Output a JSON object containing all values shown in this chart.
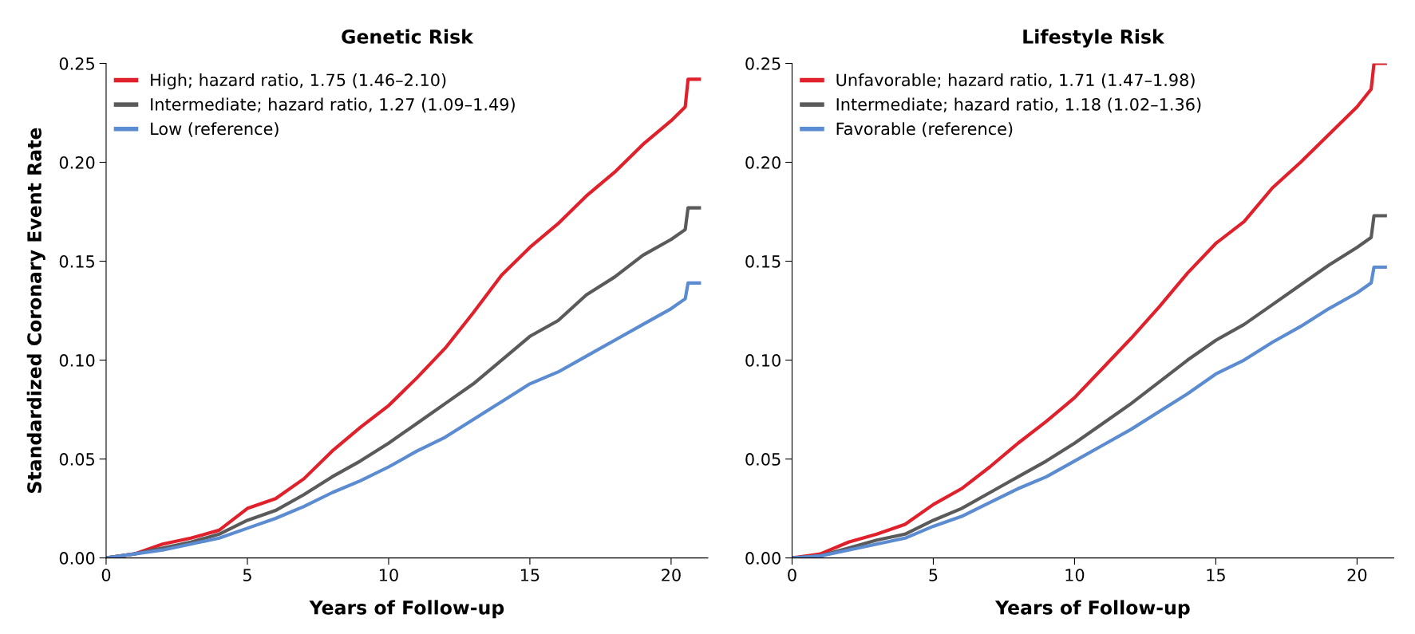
{
  "chart_data": [
    {
      "type": "line",
      "title": "Genetic Risk",
      "xlabel": "Years of Follow-up",
      "ylabel": "Standardized Coronary Event Rate",
      "xlim": [
        0,
        21.3
      ],
      "xticks": [
        0,
        5,
        10,
        15,
        20
      ],
      "ylim": [
        0,
        0.25
      ],
      "yticks": [
        {
          "value": 0,
          "label": "0.00"
        },
        {
          "value": 0.05,
          "label": "0.05"
        },
        {
          "value": 0.1,
          "label": "0.10"
        },
        {
          "value": 0.15,
          "label": "0.15"
        },
        {
          "value": 0.2,
          "label": "0.20"
        },
        {
          "value": 0.25,
          "label": "0.25"
        }
      ],
      "legend": "top left",
      "grid": false,
      "x": [
        0,
        1,
        2,
        3,
        4,
        5,
        6,
        7,
        8,
        9,
        10,
        11,
        12,
        13,
        14,
        15,
        16,
        17,
        18,
        19,
        20,
        20.5,
        20.6,
        21
      ],
      "series": [
        {
          "name": "High; hazard ratio, 1.75 (1.46–2.10)",
          "color": "#e0202a",
          "values": [
            0,
            0.002,
            0.007,
            0.01,
            0.014,
            0.025,
            0.03,
            0.04,
            0.054,
            0.066,
            0.077,
            0.091,
            0.106,
            0.124,
            0.143,
            0.157,
            0.169,
            0.183,
            0.195,
            0.209,
            0.221,
            0.228,
            0.242,
            0.242
          ]
        },
        {
          "name": "Intermediate; hazard ratio, 1.27 (1.09–1.49)",
          "color": "#5a5a5a",
          "values": [
            0,
            0.002,
            0.005,
            0.008,
            0.012,
            0.019,
            0.024,
            0.032,
            0.041,
            0.049,
            0.058,
            0.068,
            0.078,
            0.088,
            0.1,
            0.112,
            0.12,
            0.133,
            0.142,
            0.153,
            0.161,
            0.166,
            0.177,
            0.177
          ]
        },
        {
          "name": "Low (reference)",
          "color": "#5b8bd0",
          "values": [
            0,
            0.002,
            0.004,
            0.007,
            0.01,
            0.015,
            0.02,
            0.026,
            0.033,
            0.039,
            0.046,
            0.054,
            0.061,
            0.07,
            0.079,
            0.088,
            0.094,
            0.102,
            0.11,
            0.118,
            0.126,
            0.131,
            0.139,
            0.139
          ]
        }
      ]
    },
    {
      "type": "line",
      "title": "Lifestyle Risk",
      "xlabel": "Years of Follow-up",
      "xlim": [
        0,
        21.3
      ],
      "xticks": [
        0,
        5,
        10,
        15,
        20
      ],
      "ylim": [
        0,
        0.25
      ],
      "yticks": [
        {
          "value": 0,
          "label": "0.00"
        },
        {
          "value": 0.05,
          "label": "0.05"
        },
        {
          "value": 0.1,
          "label": "0.10"
        },
        {
          "value": 0.15,
          "label": "0.15"
        },
        {
          "value": 0.2,
          "label": "0.20"
        },
        {
          "value": 0.25,
          "label": "0.25"
        }
      ],
      "legend": "top left",
      "grid": false,
      "x": [
        0,
        1,
        2,
        3,
        4,
        5,
        6,
        7,
        8,
        9,
        10,
        11,
        12,
        13,
        14,
        15,
        16,
        17,
        18,
        19,
        20,
        20.5,
        20.6,
        21
      ],
      "series": [
        {
          "name": "Unfavorable; hazard ratio, 1.71 (1.47–1.98)",
          "color": "#e0202a",
          "values": [
            0,
            0.002,
            0.008,
            0.012,
            0.017,
            0.027,
            0.035,
            0.046,
            0.058,
            0.069,
            0.081,
            0.096,
            0.111,
            0.127,
            0.144,
            0.159,
            0.17,
            0.187,
            0.2,
            0.214,
            0.228,
            0.237,
            0.25,
            0.25
          ]
        },
        {
          "name": "Intermediate; hazard ratio, 1.18 (1.02–1.36)",
          "color": "#5a5a5a",
          "values": [
            0,
            0.001,
            0.005,
            0.009,
            0.012,
            0.019,
            0.025,
            0.033,
            0.041,
            0.049,
            0.058,
            0.068,
            0.078,
            0.089,
            0.1,
            0.11,
            0.118,
            0.128,
            0.138,
            0.148,
            0.157,
            0.162,
            0.173,
            0.173
          ]
        },
        {
          "name": "Favorable (reference)",
          "color": "#5b8bd0",
          "values": [
            0,
            0.001,
            0.004,
            0.007,
            0.01,
            0.016,
            0.021,
            0.028,
            0.035,
            0.041,
            0.049,
            0.057,
            0.065,
            0.074,
            0.083,
            0.093,
            0.1,
            0.109,
            0.117,
            0.126,
            0.134,
            0.139,
            0.147,
            0.147
          ]
        }
      ]
    }
  ]
}
